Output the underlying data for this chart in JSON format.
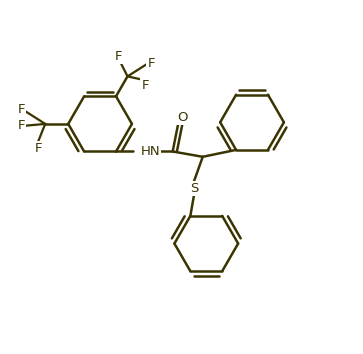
{
  "background_color": "#ffffff",
  "bond_color": "#3a3500",
  "text_color": "#3a3500",
  "bond_lw": 1.8,
  "font_size": 9.5,
  "figsize": [
    3.63,
    3.54
  ],
  "dpi": 100,
  "xlim": [
    -0.5,
    9.5
  ],
  "ylim": [
    -5.5,
    4.5
  ]
}
